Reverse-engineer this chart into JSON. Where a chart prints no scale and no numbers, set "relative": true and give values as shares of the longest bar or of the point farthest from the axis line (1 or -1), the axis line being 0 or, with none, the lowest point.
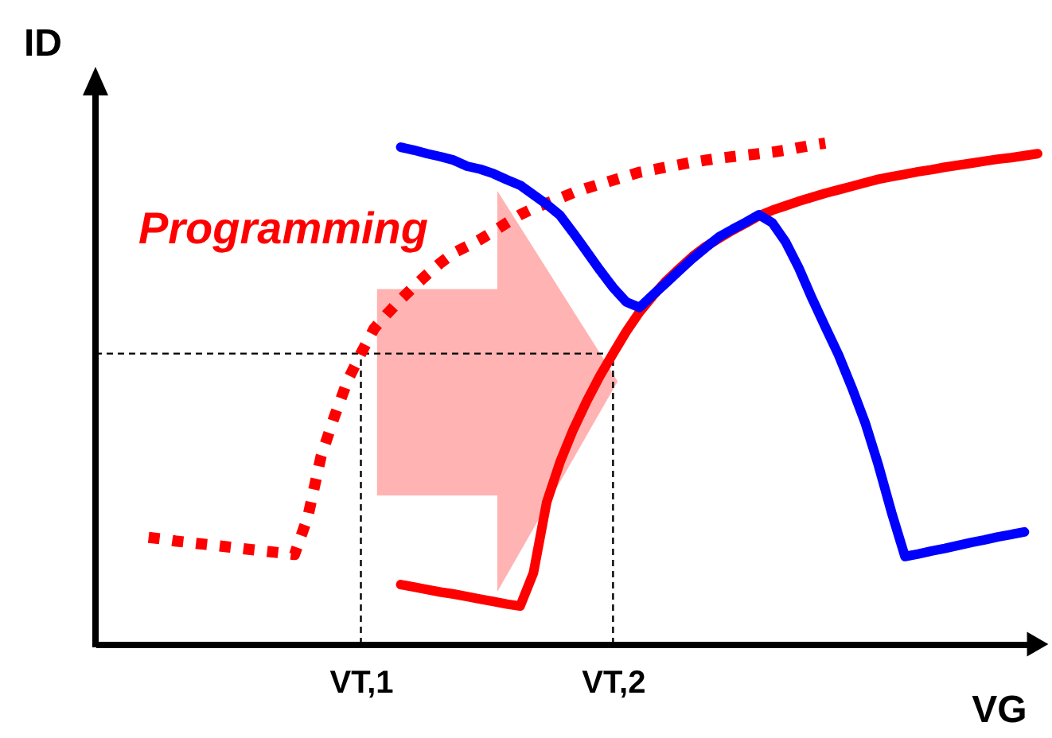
{
  "chart_data": {
    "type": "line",
    "relative": true,
    "xlabel": "VG",
    "ylabel": "ID",
    "annotations": [
      "Programming"
    ],
    "tick_labels": "x",
    "categories": [
      null,
      null,
      null,
      null,
      null,
      null,
      null,
      null,
      null,
      null,
      null,
      null,
      null,
      null,
      null,
      null,
      null,
      null,
      null,
      null,
      "VT,1",
      null,
      null,
      null,
      null,
      null,
      null,
      null,
      null,
      null,
      null,
      null,
      null,
      null,
      null,
      null,
      null,
      null,
      null,
      "VT,2",
      null,
      null,
      null,
      null,
      null,
      null,
      null,
      null,
      null,
      null,
      null,
      null,
      null,
      null,
      null,
      null,
      null,
      null,
      null,
      null,
      null,
      null,
      null,
      null,
      null,
      null,
      null,
      null,
      null,
      null,
      null,
      null
    ],
    "series": [
      {
        "color": "#ff0000",
        "line_style": "dotted",
        "values": [
          null,
          null,
          null,
          null,
          0.213,
          0.21,
          0.206,
          0.203,
          0.2,
          0.197,
          0.194,
          0.191,
          0.188,
          0.185,
          0.182,
          0.179,
          0.254,
          0.375,
          0.454,
          0.526,
          0.58,
          0.63,
          0.66,
          0.688,
          0.714,
          0.738,
          0.761,
          0.781,
          0.794,
          0.808,
          0.824,
          0.841,
          0.857,
          0.87,
          0.88,
          0.89,
          0.901,
          0.91,
          0.918,
          0.926,
          0.934,
          0.942,
          0.947,
          0.952,
          0.957,
          0.962,
          0.966,
          0.97,
          0.973,
          0.976,
          0.979,
          0.982,
          0.986,
          0.991,
          0.996,
          1.0,
          null,
          null,
          null,
          null,
          null,
          null,
          null,
          null,
          null,
          null,
          null,
          null,
          null,
          null,
          null,
          null
        ]
      },
      {
        "color": "#ff0000",
        "line_style": "solid",
        "values": [
          null,
          null,
          null,
          null,
          null,
          null,
          null,
          null,
          null,
          null,
          null,
          null,
          null,
          null,
          null,
          null,
          null,
          null,
          null,
          null,
          null,
          null,
          null,
          0.119,
          0.114,
          0.109,
          0.104,
          0.1,
          0.095,
          0.09,
          0.085,
          0.08,
          0.076,
          0.142,
          0.283,
          0.363,
          0.428,
          0.484,
          0.535,
          0.58,
          0.624,
          0.663,
          0.695,
          0.725,
          0.75,
          0.774,
          0.794,
          0.81,
          0.826,
          0.84,
          0.855,
          0.866,
          0.875,
          0.884,
          0.892,
          0.9,
          0.907,
          0.914,
          0.921,
          0.928,
          0.933,
          0.938,
          0.943,
          0.947,
          0.952,
          0.956,
          0.96,
          0.964,
          0.968,
          0.971,
          0.975,
          0.979
        ]
      },
      {
        "color": "#0000ff",
        "line_style": "solid",
        "values": [
          null,
          null,
          null,
          null,
          null,
          null,
          null,
          null,
          null,
          null,
          null,
          null,
          null,
          null,
          null,
          null,
          null,
          null,
          null,
          null,
          null,
          null,
          null,
          0.992,
          0.986,
          0.979,
          0.973,
          0.966,
          0.954,
          0.948,
          0.939,
          0.927,
          0.916,
          0.897,
          0.878,
          0.856,
          0.821,
          0.784,
          0.747,
          0.712,
          0.683,
          0.672,
          0.697,
          0.721,
          0.746,
          0.77,
          0.792,
          0.813,
          0.828,
          0.842,
          0.857,
          0.841,
          0.803,
          0.751,
          0.69,
          0.633,
          0.577,
          0.512,
          0.442,
          0.357,
          0.262,
          0.175,
          0.18,
          0.186,
          0.191,
          0.197,
          0.203,
          0.208,
          0.214,
          0.219,
          0.224,
          null
        ]
      }
    ],
    "ref_lines": [
      {
        "axis": "y",
        "value": 0.58,
        "line_style": "dashed",
        "color": "#000000"
      },
      {
        "axis": "x",
        "value": "VT,1",
        "line_style": "dashed",
        "color": "#000000"
      },
      {
        "axis": "x",
        "value": "VT,2",
        "line_style": "dashed",
        "color": "#000000"
      }
    ]
  }
}
